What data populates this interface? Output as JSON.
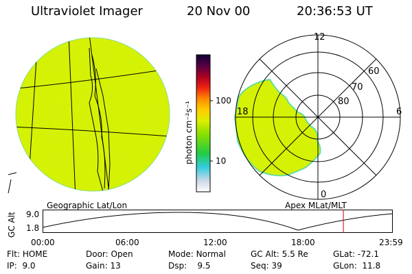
{
  "header": {
    "instrument": "Ultraviolet Imager",
    "date": "20 Nov 00",
    "time": "20:36:53 UT"
  },
  "colorbar": {
    "unit_label": "photon cm⁻²s⁻¹",
    "ticks": [
      "100",
      "10"
    ]
  },
  "left_panel": {
    "label": "Geographic Lat/Lon"
  },
  "right_panel": {
    "label": "Apex MLat/MLT",
    "mlt_labels": {
      "top": "12",
      "left": "18",
      "right": "6",
      "bottom": "0"
    },
    "lat_labels": [
      "60",
      "70",
      "80"
    ]
  },
  "altitude_plot": {
    "axis_label": "GC Alt",
    "y_ticks": [
      "9.0",
      "1.8"
    ],
    "x_ticks": [
      "00:00",
      "06:00",
      "12:00",
      "18:00",
      "23:59"
    ],
    "marker_time_hours": 20.6
  },
  "info": {
    "flt_label": "Flt:",
    "flt_value": "HOME",
    "ip_label": "IP:",
    "ip_value": "9.0",
    "door_label": "Door:",
    "door_value": "Open",
    "gain_label": "Gain:",
    "gain_value": "13",
    "mode_label": "Mode:",
    "mode_value": "Normal",
    "dsp_label": "Dsp:",
    "dsp_value": "9.5",
    "gcalt_label": "GC Alt:",
    "gcalt_value": "5.5 Re",
    "seq_label": "Seq:",
    "seq_value": "39",
    "glat_label": "GLat:",
    "glat_value": "-72.1",
    "glon_label": "GLon:",
    "glon_value": "11.8"
  },
  "colors": {
    "image_fill": "#d8f200",
    "image_edge": "#66dd99",
    "marker": "#cc0000"
  }
}
